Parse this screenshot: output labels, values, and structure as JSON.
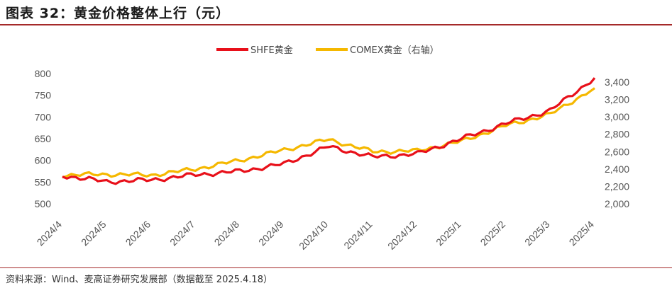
{
  "page": {
    "title": "图表 32：黄金价格整体上行（元）",
    "source": "资料来源：Wind、麦高证券研究发展部（数据截至 2025.4.18）"
  },
  "chart_data": {
    "type": "line",
    "x": [
      "2024/4",
      "2024/5",
      "2024/6",
      "2024/7",
      "2024/8",
      "2024/9",
      "2024/10",
      "2024/11",
      "2024/12",
      "2025/1",
      "2025/2",
      "2025/3",
      "2025/4"
    ],
    "x_ticks": [
      "2024/4",
      "2024/5",
      "2024/6",
      "2024/7",
      "2024/8",
      "2024/9",
      "2024/10",
      "2024/11",
      "2024/12",
      "2025/1",
      "2025/2",
      "2025/3",
      "2025/4"
    ],
    "left_axis": {
      "ylim": [
        500,
        800
      ],
      "ticks": [
        "500",
        "550",
        "600",
        "650",
        "700",
        "750",
        "800"
      ]
    },
    "right_axis": {
      "ylim": [
        2000,
        3600
      ],
      "ticks": [
        "2,000",
        "2,200",
        "2,400",
        "2,600",
        "2,800",
        "3,000",
        "3,200",
        "3,400"
      ]
    },
    "legend_position": "top-center",
    "series": [
      {
        "name": "SHFE黄金",
        "axis": "left",
        "color": "#e8101a",
        "values": [
          565,
          551,
          555,
          567,
          575,
          592,
          632,
          608,
          615,
          650,
          685,
          715,
          790
        ]
      },
      {
        "name": "COMEX黄金（右轴）",
        "axis": "right",
        "color": "#f5b800",
        "values": [
          2330,
          2340,
          2330,
          2400,
          2500,
          2620,
          2740,
          2600,
          2610,
          2720,
          2900,
          3030,
          3330
        ]
      }
    ]
  }
}
